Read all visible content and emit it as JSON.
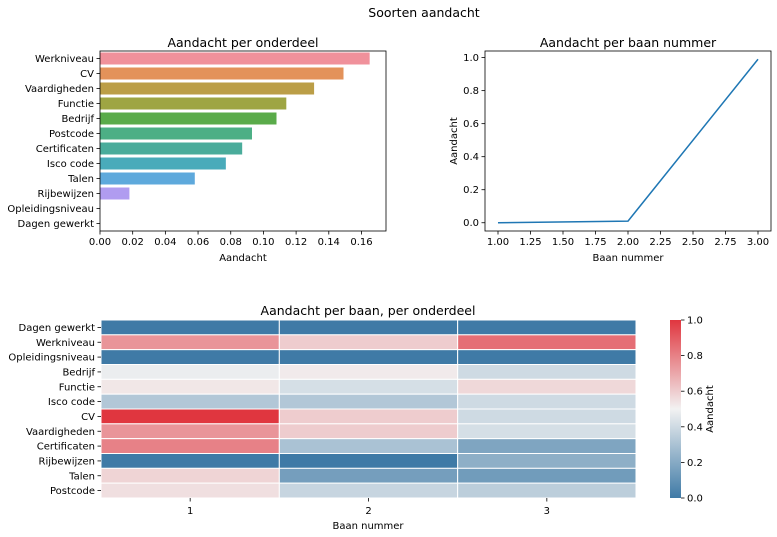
{
  "figure": {
    "title": "Soorten aandacht"
  },
  "chart_data": [
    {
      "type": "bar",
      "orientation": "horizontal",
      "title": "Aandacht per onderdeel",
      "xlabel": "Aandacht",
      "ylabel": "",
      "xlim": [
        0,
        0.175
      ],
      "xticks": [
        "0.00",
        "0.02",
        "0.04",
        "0.06",
        "0.08",
        "0.10",
        "0.12",
        "0.14",
        "0.16"
      ],
      "categories": [
        "Werkniveau",
        "CV",
        "Vaardigheden",
        "Functie",
        "Bedrijf",
        "Postcode",
        "Certificaten",
        "Isco code",
        "Talen",
        "Rijbewijzen",
        "Opleidingsniveau",
        "Dagen gewerkt"
      ],
      "values": [
        0.165,
        0.149,
        0.131,
        0.114,
        0.108,
        0.093,
        0.087,
        0.077,
        0.058,
        0.018,
        0.0,
        0.0
      ],
      "colors": [
        "#f0919b",
        "#e3925a",
        "#bb9e47",
        "#9ea543",
        "#5aab4a",
        "#4caf85",
        "#4aac9b",
        "#49abba",
        "#5ea9dc",
        "#b09cf0",
        "#e896d0",
        "#ee93b4"
      ],
      "grid": false
    },
    {
      "type": "line",
      "title": "Aandacht per baan nummer",
      "xlabel": "Baan nummer",
      "ylabel": "Aandacht",
      "x": [
        1,
        2,
        3
      ],
      "y": [
        0.0,
        0.01,
        0.99
      ],
      "xlim": [
        0.9,
        3.1
      ],
      "ylim": [
        -0.05,
        1.04
      ],
      "xticks": [
        "1.00",
        "1.25",
        "1.50",
        "1.75",
        "2.00",
        "2.25",
        "2.50",
        "2.75",
        "3.00"
      ],
      "yticks": [
        "0.0",
        "0.2",
        "0.4",
        "0.6",
        "0.8",
        "1.0"
      ],
      "color": "#1f77b4",
      "grid": false
    },
    {
      "type": "heatmap",
      "title": "Aandacht per baan, per onderdeel",
      "xlabel": "Baan nummer",
      "columns": [
        "1",
        "2",
        "3"
      ],
      "rows": [
        "Dagen gewerkt",
        "Werkniveau",
        "Opleidingsniveau",
        "Bedrijf",
        "Functie",
        "Isco code",
        "CV",
        "Vaardigheden",
        "Certificaten",
        "Rijbewijzen",
        "Talen",
        "Postcode"
      ],
      "values": [
        [
          0.0,
          0.0,
          0.0
        ],
        [
          0.75,
          0.6,
          0.85
        ],
        [
          0.0,
          0.0,
          0.0
        ],
        [
          0.48,
          0.52,
          0.4
        ],
        [
          0.53,
          0.42,
          0.57
        ],
        [
          0.32,
          0.32,
          0.4
        ],
        [
          1.0,
          0.6,
          0.4
        ],
        [
          0.75,
          0.6,
          0.42
        ],
        [
          0.8,
          0.3,
          0.18
        ],
        [
          0.0,
          0.0,
          0.22
        ],
        [
          0.58,
          0.15,
          0.14
        ],
        [
          0.55,
          0.38,
          0.35
        ]
      ],
      "colorbar": {
        "label": "Aandacht",
        "range": [
          0.0,
          1.0
        ],
        "ticks": [
          "0.0",
          "0.2",
          "0.4",
          "0.6",
          "0.8",
          "1.0"
        ],
        "low_color": "#3f7aa6",
        "mid_color": "#f2f2f2",
        "high_color": "#e0363f"
      }
    }
  ]
}
